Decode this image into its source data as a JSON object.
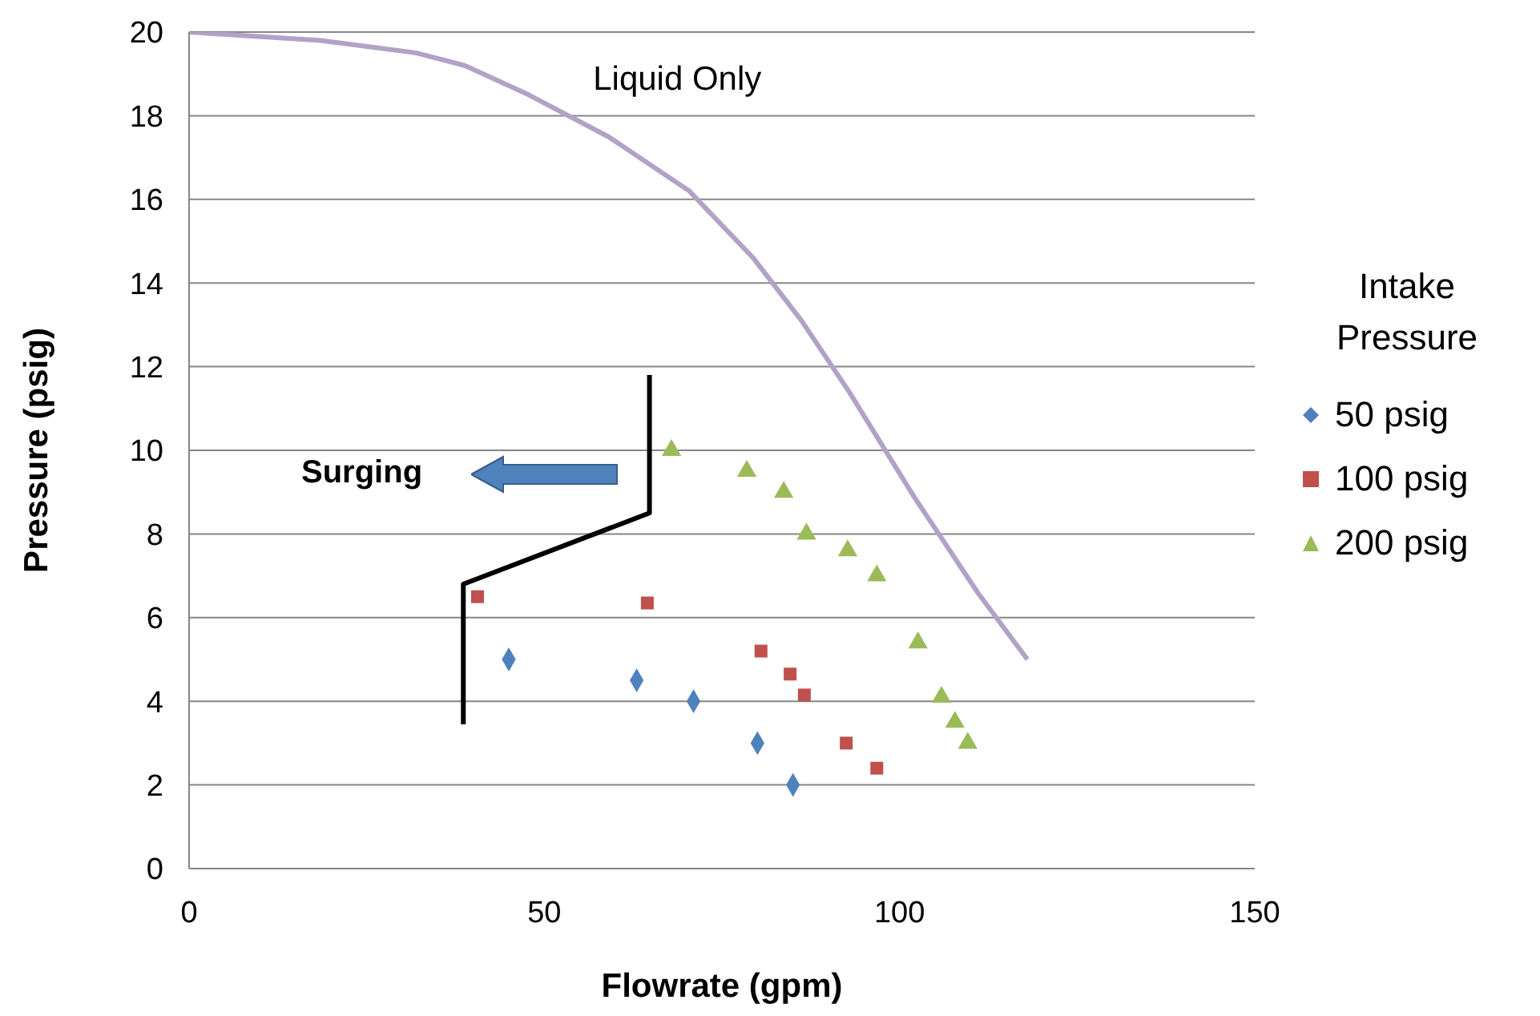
{
  "chart_data": {
    "type": "scatter",
    "xlabel": "Flowrate (gpm)",
    "ylabel": "Pressure (psig)",
    "legend_title": "Intake Pressure",
    "legend": "right",
    "grid": "y",
    "xlim": [
      0,
      150
    ],
    "xticks": [
      0,
      50,
      100,
      150
    ],
    "ylim": [
      0,
      20
    ],
    "yticks": [
      0,
      2,
      4,
      6,
      8,
      10,
      12,
      14,
      16,
      18,
      20
    ],
    "annotations": [
      "Surging"
    ],
    "series": [
      {
        "name": "Liquid Only",
        "type": "line",
        "color": "#b3a2c7",
        "marker": "none",
        "x": [
          0,
          18.5,
          32,
          38.8,
          47.8,
          59,
          70.4,
          79.4,
          86.2,
          92.9,
          102,
          111,
          118
        ],
        "values": [
          20,
          19.8,
          19.5,
          19.2,
          18.5,
          17.5,
          16.2,
          14.6,
          13.1,
          11.4,
          8.9,
          6.6,
          5.0
        ]
      },
      {
        "type": "line",
        "color": "#000000",
        "marker": "none",
        "x": [
          64.8,
          64.8,
          38.6,
          38.6
        ],
        "values": [
          11.8,
          8.5,
          6.8,
          3.45
        ]
      },
      {
        "name": "50 psig",
        "color": "#4f81bd",
        "marker": "diamond",
        "x": [
          45,
          63,
          71,
          80,
          85
        ],
        "values": [
          5.0,
          4.5,
          4.0,
          3.0,
          2.0
        ]
      },
      {
        "name": "100 psig",
        "color": "#c0504d",
        "marker": "square",
        "x": [
          40.6,
          64.5,
          80.5,
          84.6,
          86.6,
          92.5,
          96.8
        ],
        "values": [
          6.5,
          6.35,
          5.2,
          4.65,
          4.15,
          3.0,
          2.4
        ]
      },
      {
        "name": "200 psig",
        "color": "#9bbb59",
        "marker": "triangle",
        "x": [
          67.9,
          78.5,
          83.7,
          86.9,
          92.7,
          96.8,
          102.6,
          105.9,
          107.8,
          109.6
        ],
        "values": [
          10.0,
          9.5,
          9.0,
          8.0,
          7.6,
          7.0,
          5.4,
          4.1,
          3.5,
          3.0
        ]
      }
    ]
  }
}
